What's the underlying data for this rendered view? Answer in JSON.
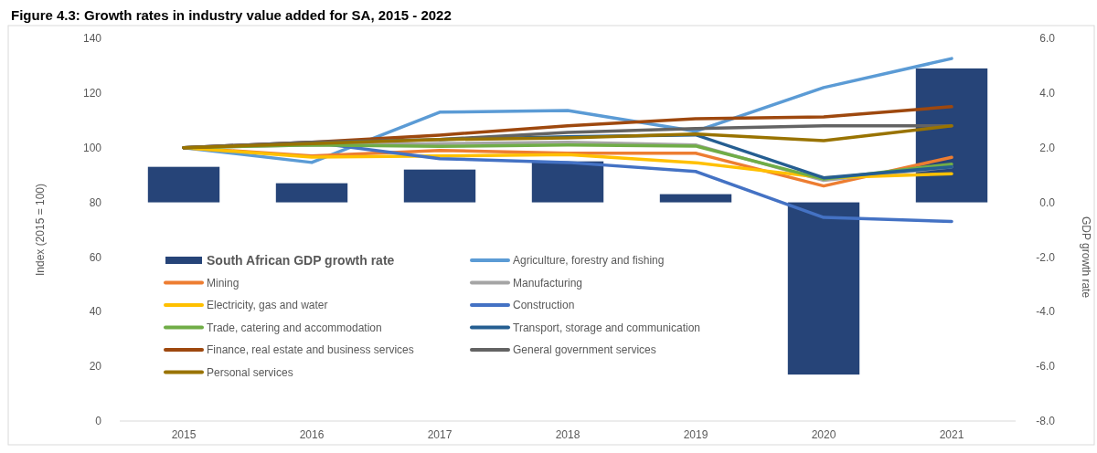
{
  "chart_data": {
    "type": "line",
    "title": "Figure 4.3: Growth rates in industry value added for SA, 2015 - 2022",
    "ylabel": "Index (2015 = 100)",
    "y2label": "GDP growth rate",
    "categories": [
      "2015",
      "2016",
      "2017",
      "2018",
      "2019",
      "2020",
      "2021"
    ],
    "ylim": [
      0,
      140
    ],
    "yticks": [
      0,
      20,
      40,
      60,
      80,
      100,
      120,
      140
    ],
    "y2lim": [
      -8,
      6
    ],
    "y2ticks": [
      {
        "value": -8,
        "label": "-8.0"
      },
      {
        "value": -6,
        "label": "-6.0"
      },
      {
        "value": -4,
        "label": "-4.0"
      },
      {
        "value": -2,
        "label": "-2.0"
      },
      {
        "value": 0,
        "label": "0.0"
      },
      {
        "value": 2,
        "label": "2.0"
      },
      {
        "value": 4,
        "label": "4.0"
      },
      {
        "value": 6,
        "label": "6.0"
      }
    ],
    "grid": false,
    "legend": "bottom left",
    "marker": "none",
    "line_style": "solid",
    "series": [
      {
        "name": "South African GDP growth rate",
        "type": "bar",
        "axis": "y2",
        "color": "#264478",
        "values": [
          1.3,
          0.7,
          1.2,
          1.5,
          0.3,
          -6.3,
          4.9
        ]
      },
      {
        "name": "Agriculture, forestry and fishing",
        "color": "#5b9bd5",
        "values": [
          100,
          94.6,
          113,
          113.6,
          106,
          122,
          132.6
        ]
      },
      {
        "name": "Mining",
        "color": "#ed7d31",
        "values": [
          100,
          97,
          99,
          98,
          98,
          86,
          96.5
        ]
      },
      {
        "name": "Manufacturing",
        "color": "#a5a5a5",
        "values": [
          100,
          101,
          101.5,
          102,
          101,
          88,
          93
        ]
      },
      {
        "name": "Electricity, gas and water",
        "color": "#ffc000",
        "values": [
          100,
          96.6,
          97,
          97.5,
          94.5,
          89,
          90.5
        ]
      },
      {
        "name": "Construction",
        "color": "#4472c4",
        "values": [
          100,
          102,
          96,
          94.6,
          91.3,
          74.5,
          73
        ]
      },
      {
        "name": "Trade, catering and accommodation",
        "color": "#70ad47",
        "values": [
          100,
          101,
          100.5,
          101,
          100.6,
          88.5,
          94
        ]
      },
      {
        "name": "Transport, storage and communication",
        "color": "#255e91",
        "values": [
          null,
          null,
          103,
          104,
          104.7,
          89,
          93
        ]
      },
      {
        "name": "Finance, real estate and business services",
        "color": "#9e480e",
        "values": [
          100,
          102,
          104.6,
          108,
          110.6,
          111.3,
          115
        ]
      },
      {
        "name": "General government services",
        "color": "#636363",
        "values": [
          100,
          102,
          103,
          105.6,
          107,
          108,
          108
        ]
      },
      {
        "name": "Personal services",
        "color": "#997300",
        "values": [
          100,
          101.5,
          103,
          103.6,
          105,
          102.6,
          108
        ]
      }
    ]
  }
}
